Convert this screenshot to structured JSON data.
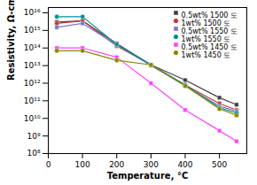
{
  "chart_data": {
    "type": "line",
    "xlabel": "Temperature, °C",
    "ylabel": "Resistivity, Ω-cm",
    "log": "y",
    "grid": false,
    "legend": "upper right",
    "xlim": [
      0,
      580
    ],
    "xticks": [
      0,
      100,
      200,
      300,
      400,
      500
    ],
    "ylim": [
      100000000,
      1.9952623149688796e+16
    ],
    "yticks": [
      {
        "value": 100000000.0,
        "label": "10⁸"
      },
      {
        "value": 1000000000.0,
        "label": "10⁹"
      },
      {
        "value": 10000000000.0,
        "label": "10¹⁰"
      },
      {
        "value": 100000000000.0,
        "label": "10¹¹"
      },
      {
        "value": 1000000000000.0,
        "label": "10¹²"
      },
      {
        "value": 10000000000000.0,
        "label": "10¹³"
      },
      {
        "value": 100000000000000.0,
        "label": "10¹⁴"
      },
      {
        "value": 1000000000000000.0,
        "label": "10¹⁵"
      },
      {
        "value": 1e+16,
        "label": "10¹⁶"
      }
    ],
    "x": [
      25,
      100,
      200,
      300,
      400,
      500,
      550
    ],
    "series": [
      {
        "name": "0.5wt% 1500 도",
        "color": "#404040",
        "marker": "square",
        "line_style": "solid",
        "values": [
          3000000000000000.0,
          3500000000000000.0,
          180000000000000.0,
          11000000000000.0,
          1500000000000.0,
          150000000000.0,
          60000000000.0
        ]
      },
      {
        "name": "1wt% 1500 도",
        "color": "#cc3333",
        "marker": "circle",
        "line_style": "solid",
        "values": [
          2500000000000000.0,
          3500000000000000.0,
          130000000000000.0,
          11000000000000.0,
          800000000000.0,
          70000000000.0,
          30000000000.0
        ]
      },
      {
        "name": "0.5wt% 1550 도",
        "color": "#7777cc",
        "marker": "square",
        "line_style": "solid",
        "values": [
          1500000000000000.0,
          2500000000000000.0,
          150000000000000.0,
          10000000000000.0,
          700000000000.0,
          50000000000.0,
          25000000000.0
        ]
      },
      {
        "name": "1wt% 1550 도",
        "color": "#009090",
        "marker": "circle",
        "line_style": "solid",
        "values": [
          6000000000000000.0,
          6000000000000000.0,
          160000000000000.0,
          11000000000000.0,
          800000000000.0,
          40000000000.0,
          20000000000.0
        ]
      },
      {
        "name": "0.5wt% 1450 도",
        "color": "#ff44ff",
        "marker": "square",
        "line_style": "solid",
        "values": [
          100000000000000.0,
          100000000000000.0,
          30000000000000.0,
          1000000000000.0,
          30000000000.0,
          2000000000.0,
          500000000.0
        ]
      },
      {
        "name": "1wt% 1450 도",
        "color": "#888800",
        "marker": "circle",
        "line_style": "solid",
        "values": [
          70000000000000.0,
          70000000000000.0,
          20000000000000.0,
          11000000000000.0,
          700000000000.0,
          35000000000.0,
          15000000000.0
        ]
      }
    ]
  }
}
